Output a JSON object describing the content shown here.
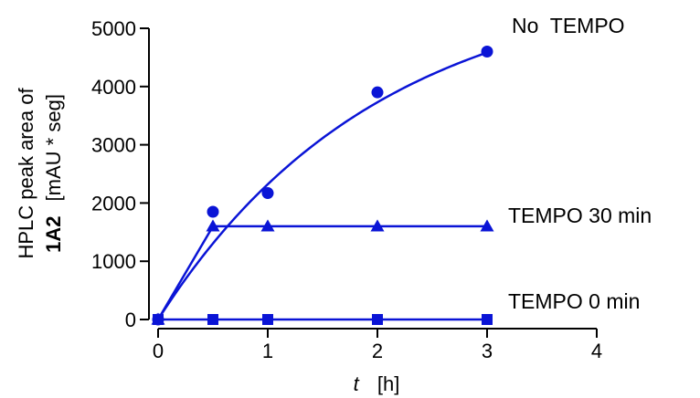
{
  "chart_data": {
    "type": "scatter",
    "xlabel_var": "t",
    "xlabel_unit": "[h]",
    "ylabel_line1": "HPLC peak area of",
    "ylabel_bold": "1A2",
    "ylabel_unit": "[mAU * seg]",
    "xlim": [
      0,
      4
    ],
    "ylim": [
      0,
      5000
    ],
    "xticks": [
      0,
      1,
      2,
      3,
      4
    ],
    "yticks": [
      0,
      1000,
      2000,
      3000,
      4000,
      5000
    ],
    "grid": false,
    "color": "#0a14d6",
    "series": [
      {
        "name": "No  TEMPO",
        "marker": "circle",
        "x": [
          0,
          0.5,
          1,
          2,
          3
        ],
        "y": [
          0,
          1850,
          2170,
          3900,
          4600
        ],
        "fit": {
          "model": "one-phase-association",
          "plateau": 5900,
          "k": 0.5,
          "x_range": [
            0,
            3
          ]
        }
      },
      {
        "name": "TEMPO 30 min",
        "marker": "triangle",
        "x": [
          0,
          0.5,
          1,
          2,
          3
        ],
        "y": [
          0,
          1600,
          1600,
          1600,
          1600
        ]
      },
      {
        "name": "TEMPO 0 min",
        "marker": "square",
        "x": [
          0,
          0.5,
          1,
          2,
          3
        ],
        "y": [
          0,
          0,
          0,
          0,
          0
        ]
      }
    ]
  }
}
